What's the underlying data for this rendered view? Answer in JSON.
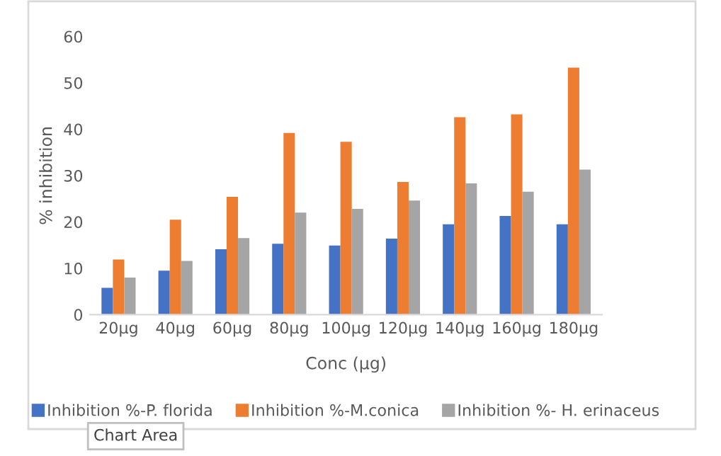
{
  "chart_data": {
    "type": "bar",
    "xlabel": "Conc (µg)",
    "ylabel": "% inhibition",
    "categories": [
      "20µg",
      "40µg",
      "60µg",
      "80µg",
      "100µg",
      "120µg",
      "140µg",
      "160µg",
      "180µg"
    ],
    "series": [
      {
        "name": "Inhibition %-P. florida",
        "color": "#4472c4",
        "values": [
          5.8,
          9.5,
          14.1,
          15.3,
          14.9,
          16.4,
          19.5,
          21.3,
          19.5
        ]
      },
      {
        "name": "Inhibition %-M.conica",
        "color": "#ed7d31",
        "values": [
          11.9,
          20.5,
          25.4,
          39.2,
          37.3,
          28.6,
          42.6,
          43.2,
          53.3
        ]
      },
      {
        "name": "Inhibition %- H. erinaceus",
        "color": "#a5a5a5",
        "values": [
          8.0,
          11.6,
          16.5,
          22.0,
          22.8,
          24.6,
          28.3,
          26.5,
          31.3
        ]
      }
    ],
    "ylim": [
      0,
      60
    ],
    "yticks": [
      0,
      10,
      20,
      30,
      40,
      50,
      60
    ],
    "grid": false,
    "legend": "bottom",
    "annotations": [
      "Chart Area"
    ]
  }
}
